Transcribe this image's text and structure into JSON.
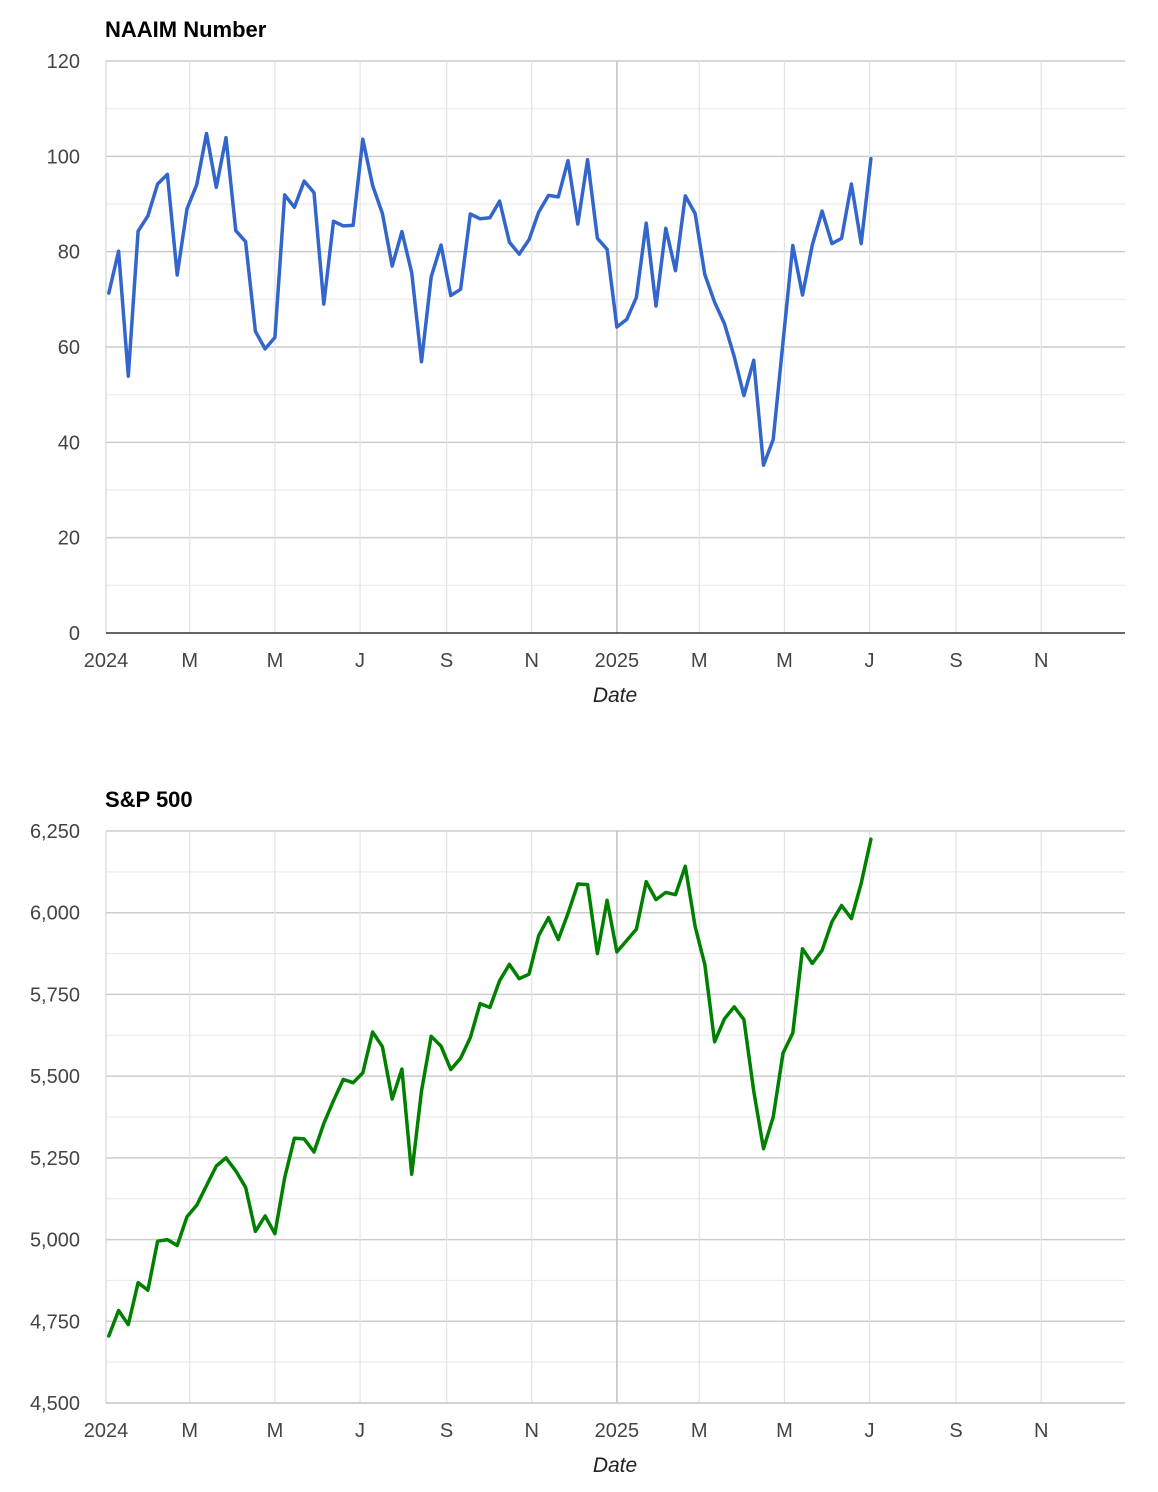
{
  "chart_data": [
    {
      "type": "line",
      "title": "NAAIM Number",
      "xlabel": "Date",
      "ylabel": "",
      "ylim": [
        0,
        120
      ],
      "yticks": [
        "0",
        "20",
        "40",
        "60",
        "80",
        "100",
        "120"
      ],
      "xlim": [
        "2024-01-01",
        "2025-12-31"
      ],
      "xticks": [
        {
          "label": "2024",
          "date": "2024-01-01"
        },
        {
          "label": "M",
          "date": "2024-03-01"
        },
        {
          "label": "M",
          "date": "2024-05-01"
        },
        {
          "label": "J",
          "date": "2024-07-01"
        },
        {
          "label": "S",
          "date": "2024-09-01"
        },
        {
          "label": "N",
          "date": "2024-11-01"
        },
        {
          "label": "2025",
          "date": "2025-01-01"
        },
        {
          "label": "M",
          "date": "2025-03-01"
        },
        {
          "label": "M",
          "date": "2025-05-01"
        },
        {
          "label": "J",
          "date": "2025-07-01"
        },
        {
          "label": "S",
          "date": "2025-09-01"
        },
        {
          "label": "N",
          "date": "2025-11-01"
        }
      ],
      "grid": true,
      "legend": "none",
      "color": "#3366cc",
      "series": [
        {
          "x": [
            "2024-01-03",
            "2024-01-10",
            "2024-01-17",
            "2024-01-24",
            "2024-01-31",
            "2024-02-07",
            "2024-02-14",
            "2024-02-21",
            "2024-02-28",
            "2024-03-06",
            "2024-03-13",
            "2024-03-20",
            "2024-03-27",
            "2024-04-03",
            "2024-04-10",
            "2024-04-17",
            "2024-04-24",
            "2024-05-01",
            "2024-05-08",
            "2024-05-15",
            "2024-05-22",
            "2024-05-29",
            "2024-06-05",
            "2024-06-12",
            "2024-06-19",
            "2024-06-26",
            "2024-07-03",
            "2024-07-10",
            "2024-07-17",
            "2024-07-24",
            "2024-07-31",
            "2024-08-07",
            "2024-08-14",
            "2024-08-21",
            "2024-08-28",
            "2024-09-04",
            "2024-09-11",
            "2024-09-18",
            "2024-09-25",
            "2024-10-02",
            "2024-10-09",
            "2024-10-16",
            "2024-10-23",
            "2024-10-30",
            "2024-11-06",
            "2024-11-13",
            "2024-11-20",
            "2024-11-27",
            "2024-12-04",
            "2024-12-11",
            "2024-12-18",
            "2024-12-25",
            "2025-01-01",
            "2025-01-08",
            "2025-01-15",
            "2025-01-22",
            "2025-01-29",
            "2025-02-05",
            "2025-02-12",
            "2025-02-19",
            "2025-02-26",
            "2025-03-05",
            "2025-03-12",
            "2025-03-19",
            "2025-03-26",
            "2025-04-02",
            "2025-04-09",
            "2025-04-16",
            "2025-04-23",
            "2025-04-30",
            "2025-05-07",
            "2025-05-14",
            "2025-05-21",
            "2025-05-28",
            "2025-06-04",
            "2025-06-11",
            "2025-06-18",
            "2025-06-25",
            "2025-07-02"
          ],
          "y": [
            71.3,
            80.1,
            53.9,
            84.3,
            87.5,
            94.2,
            96.2,
            75.1,
            89.0,
            94.0,
            104.8,
            93.5,
            103.9,
            84.4,
            82.1,
            63.3,
            59.6,
            62.0,
            91.9,
            89.3,
            94.8,
            92.4,
            69.0,
            86.4,
            85.4,
            85.5,
            103.6,
            93.9,
            88.0,
            77.0,
            84.2,
            75.6,
            56.9,
            74.7,
            81.4,
            70.8,
            72.1,
            87.9,
            86.9,
            87.1,
            90.6,
            82.0,
            79.5,
            82.5,
            88.3,
            91.8,
            91.5,
            99.1,
            85.8,
            99.3,
            82.8,
            80.5,
            64.2,
            65.8,
            70.4,
            86.0,
            68.6,
            84.9,
            76.0,
            91.7,
            88.0,
            75.2,
            69.4,
            64.9,
            58.0,
            49.8,
            57.2,
            35.2,
            40.6,
            61.0,
            81.3,
            70.9,
            81.4,
            88.5,
            81.7,
            82.8,
            94.2,
            81.7,
            99.5
          ]
        }
      ]
    },
    {
      "type": "line",
      "title": "S&P 500",
      "xlabel": "Date",
      "ylabel": "",
      "ylim": [
        4500,
        6250
      ],
      "yticks": [
        "4,500",
        "4,750",
        "5,000",
        "5,250",
        "5,500",
        "5,750",
        "6,000",
        "6,250"
      ],
      "xlim": [
        "2024-01-01",
        "2025-12-31"
      ],
      "xticks": [
        {
          "label": "2024",
          "date": "2024-01-01"
        },
        {
          "label": "M",
          "date": "2024-03-01"
        },
        {
          "label": "M",
          "date": "2024-05-01"
        },
        {
          "label": "J",
          "date": "2024-07-01"
        },
        {
          "label": "S",
          "date": "2024-09-01"
        },
        {
          "label": "N",
          "date": "2024-11-01"
        },
        {
          "label": "2025",
          "date": "2025-01-01"
        },
        {
          "label": "M",
          "date": "2025-03-01"
        },
        {
          "label": "M",
          "date": "2025-05-01"
        },
        {
          "label": "J",
          "date": "2025-07-01"
        },
        {
          "label": "S",
          "date": "2025-09-01"
        },
        {
          "label": "N",
          "date": "2025-11-01"
        }
      ],
      "grid": true,
      "legend": "none",
      "color": "#008000",
      "series": [
        {
          "x": [
            "2024-01-03",
            "2024-01-10",
            "2024-01-17",
            "2024-01-24",
            "2024-01-31",
            "2024-02-07",
            "2024-02-14",
            "2024-02-21",
            "2024-02-28",
            "2024-03-06",
            "2024-03-13",
            "2024-03-20",
            "2024-03-27",
            "2024-04-03",
            "2024-04-10",
            "2024-04-17",
            "2024-04-24",
            "2024-05-01",
            "2024-05-08",
            "2024-05-15",
            "2024-05-22",
            "2024-05-29",
            "2024-06-05",
            "2024-06-12",
            "2024-06-19",
            "2024-06-26",
            "2024-07-03",
            "2024-07-10",
            "2024-07-17",
            "2024-07-24",
            "2024-07-31",
            "2024-08-07",
            "2024-08-14",
            "2024-08-21",
            "2024-08-28",
            "2024-09-04",
            "2024-09-11",
            "2024-09-18",
            "2024-09-25",
            "2024-10-02",
            "2024-10-09",
            "2024-10-16",
            "2024-10-23",
            "2024-10-30",
            "2024-11-06",
            "2024-11-13",
            "2024-11-20",
            "2024-11-27",
            "2024-12-04",
            "2024-12-11",
            "2024-12-18",
            "2024-12-25",
            "2025-01-01",
            "2025-01-08",
            "2025-01-15",
            "2025-01-22",
            "2025-01-29",
            "2025-02-05",
            "2025-02-12",
            "2025-02-19",
            "2025-02-26",
            "2025-03-05",
            "2025-03-12",
            "2025-03-19",
            "2025-03-26",
            "2025-04-02",
            "2025-04-09",
            "2025-04-16",
            "2025-04-23",
            "2025-04-30",
            "2025-05-07",
            "2025-05-14",
            "2025-05-21",
            "2025-05-28",
            "2025-06-04",
            "2025-06-11",
            "2025-06-18",
            "2025-06-25",
            "2025-07-02"
          ],
          "y": [
            4705,
            4783,
            4740,
            4868,
            4845,
            4995,
            5000,
            4982,
            5070,
            5105,
            5165,
            5225,
            5250,
            5210,
            5160,
            5025,
            5072,
            5018,
            5190,
            5310,
            5308,
            5268,
            5355,
            5425,
            5490,
            5480,
            5510,
            5635,
            5590,
            5430,
            5522,
            5200,
            5455,
            5622,
            5592,
            5520,
            5555,
            5618,
            5722,
            5710,
            5792,
            5842,
            5798,
            5812,
            5930,
            5985,
            5918,
            5998,
            6088,
            6086,
            5875,
            6038,
            5880,
            5915,
            5950,
            6095,
            6040,
            6062,
            6055,
            6142,
            5958,
            5842,
            5605,
            5675,
            5712,
            5673,
            5455,
            5278,
            5375,
            5570,
            5632,
            5890,
            5845,
            5885,
            5972,
            6022,
            5982,
            6090,
            6225
          ]
        }
      ]
    }
  ]
}
